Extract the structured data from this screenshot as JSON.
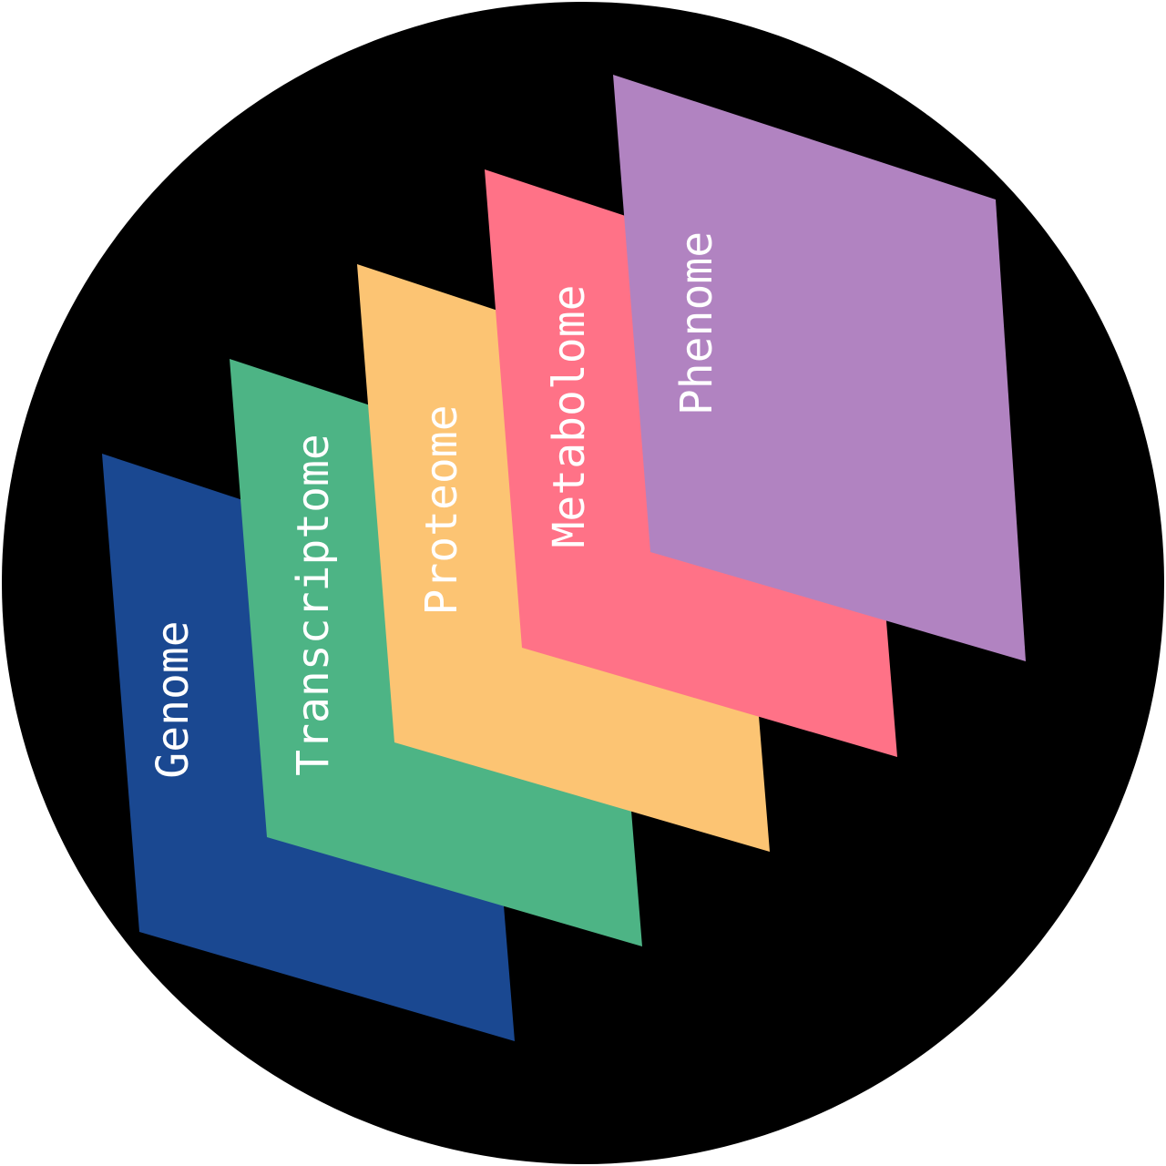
{
  "diagram": {
    "background_color": "#000000",
    "layers": [
      {
        "id": "genome",
        "label": "Genome",
        "color": "#1a4891"
      },
      {
        "id": "transcriptome",
        "label": "Transcriptome",
        "color": "#4db485"
      },
      {
        "id": "proteome",
        "label": "Proteome",
        "color": "#fcc473"
      },
      {
        "id": "metabolome",
        "label": "Metabolome",
        "color": "#ff7287"
      },
      {
        "id": "phenome",
        "label": "Phenome",
        "color": "#b183c1"
      }
    ]
  }
}
